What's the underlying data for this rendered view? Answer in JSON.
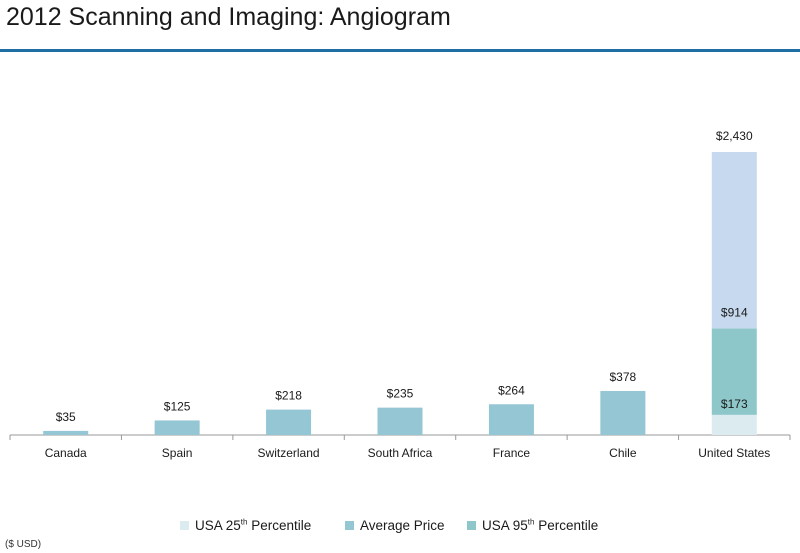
{
  "title": "2012 Scanning and Imaging: Angiogram",
  "unit_note": "($ USD)",
  "colors": {
    "rule": "#1f6fa5",
    "average_price": "#95c6d3",
    "usa_25th": "#dcebf0",
    "usa_95th_lower": "#8ec7ca",
    "usa_95th_upper": "#c6d9ef",
    "axis": "#999999"
  },
  "legend": {
    "items": [
      {
        "pre": "USA 25",
        "sup": "th",
        "post": " Percentile",
        "color": "#dcebf0"
      },
      {
        "pre": "Average Price",
        "sup": "",
        "post": "",
        "color": "#95c6d3"
      },
      {
        "pre": "USA  95",
        "sup": "th",
        "post": " Percentile",
        "color": "#8ec7ca"
      }
    ]
  },
  "chart_data": {
    "type": "bar",
    "title": "2012 Scanning and Imaging: Angiogram",
    "categories": [
      "Canada",
      "Spain",
      "Switzerland",
      "South Africa",
      "France",
      "Chile",
      "United States"
    ],
    "series": [
      {
        "name": "Average Price",
        "values": [
          35,
          125,
          218,
          235,
          264,
          378,
          null
        ]
      },
      {
        "name": "USA 25th Percentile",
        "values": [
          null,
          null,
          null,
          null,
          null,
          null,
          173
        ]
      },
      {
        "name": "USA  95th Percentile",
        "values": [
          null,
          null,
          null,
          null,
          null,
          null,
          2430
        ]
      }
    ],
    "us_stack": {
      "p25": 173,
      "average": 914,
      "p95": 2430
    },
    "data_labels": [
      "$35",
      "$125",
      "$218",
      "$235",
      "$264",
      "$378"
    ],
    "us_labels": {
      "p25": "$173",
      "average": "$914",
      "p95": "$2,430"
    },
    "ylim": [
      0,
      2430
    ],
    "grid": false,
    "legend_position": "bottom"
  }
}
